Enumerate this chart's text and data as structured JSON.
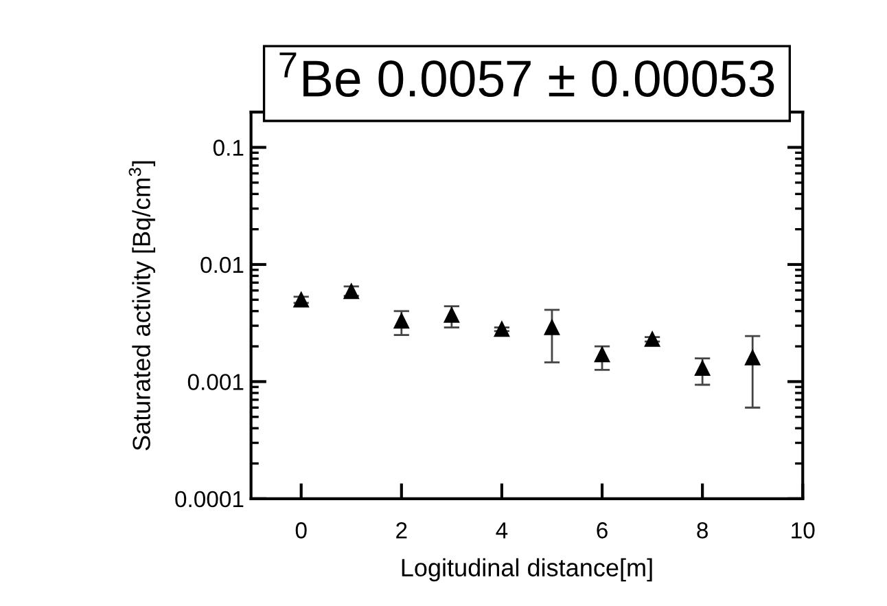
{
  "chart_data": {
    "type": "scatter",
    "title": "$^{7}$Be 0.0057 ± 0.00053",
    "xlabel": "Logitudinal distance[m]",
    "ylabel": "Saturated activity [Bq/cm$^{3}$]",
    "x": [
      0,
      1,
      2,
      3,
      4,
      5,
      6,
      7,
      8,
      9
    ],
    "values": [
      0.005,
      0.0059,
      0.0033,
      0.0037,
      0.0028,
      0.0029,
      0.0017,
      0.0023,
      0.0013,
      0.0016
    ],
    "errors": [
      [
        0.0047,
        0.0053
      ],
      [
        0.0054,
        0.0065
      ],
      [
        0.0025,
        0.004
      ],
      [
        0.0029,
        0.0044
      ],
      [
        0.0027,
        0.0029
      ],
      [
        0.00146,
        0.0041
      ],
      [
        0.00126,
        0.002
      ],
      [
        0.0022,
        0.0024
      ],
      [
        0.00094,
        0.00158
      ],
      [
        0.0006,
        0.00245
      ]
    ],
    "color": "#000000",
    "marker": "triangle",
    "log": "y",
    "grid": false,
    "legend": false,
    "xlim": [
      -1,
      10
    ],
    "xticks": [
      0,
      2,
      4,
      6,
      8,
      10
    ],
    "ylim": [
      0.0001,
      0.2
    ],
    "yticks": [
      0.0001,
      0.001,
      0.01,
      0.1
    ]
  }
}
